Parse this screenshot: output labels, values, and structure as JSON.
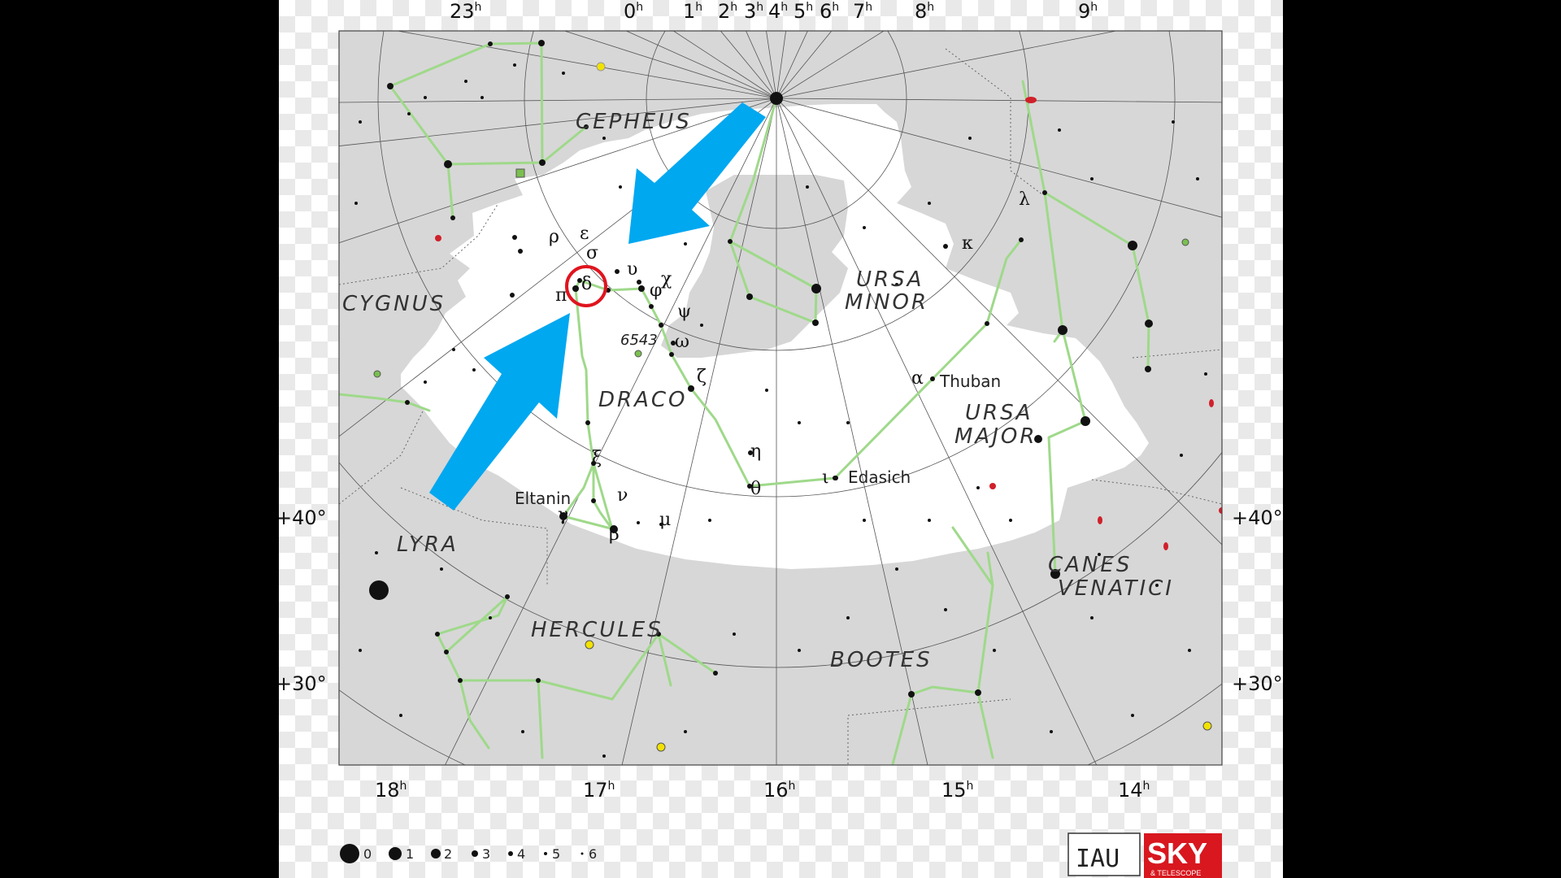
{
  "constellations": {
    "cepheus": "CEPHEUS",
    "cygnus": "CYGNUS",
    "ursa_minor_1": "URSA",
    "ursa_minor_2": "MINOR",
    "draco": "DRACO",
    "ursa_major_1": "URSA",
    "ursa_major_2": "MAJOR",
    "lyra": "LYRA",
    "hercules": "HERCULES",
    "bootes": "BOOTES",
    "canes_1": "CANES",
    "canes_2": "VENATICI"
  },
  "ra_top": [
    {
      "h": "23",
      "u": "h"
    },
    {
      "h": "0",
      "u": "h"
    },
    {
      "h": "1",
      "u": "h"
    },
    {
      "h": "2",
      "u": "h"
    },
    {
      "h": "3",
      "u": "h"
    },
    {
      "h": "4",
      "u": "h"
    },
    {
      "h": "5",
      "u": "h"
    },
    {
      "h": "6",
      "u": "h"
    },
    {
      "h": "7",
      "u": "h"
    },
    {
      "h": "8",
      "u": "h"
    },
    {
      "h": "9",
      "u": "h"
    }
  ],
  "ra_bottom": [
    {
      "h": "18",
      "u": "h"
    },
    {
      "h": "17",
      "u": "h"
    },
    {
      "h": "16",
      "u": "h"
    },
    {
      "h": "15",
      "u": "h"
    },
    {
      "h": "14",
      "u": "h"
    }
  ],
  "dec_labels": [
    "+40°",
    "+40°",
    "+30°",
    "+30°"
  ],
  "star_names": {
    "thuban": "Thuban",
    "edasich": "Edasich",
    "eltanin": "Eltanin"
  },
  "greek": {
    "rho": "ρ",
    "epsilon": "ε",
    "sigma": "σ",
    "upsilon": "υ",
    "delta": "δ",
    "pi": "π",
    "chi": "χ",
    "phi": "φ",
    "psi": "ψ",
    "omega": "ω",
    "zeta": "ζ",
    "eta": "η",
    "theta": "θ",
    "iota": "ι",
    "xi": "ξ",
    "nu": "ν",
    "gamma": "γ",
    "beta": "β",
    "mu": "μ",
    "alpha": "α",
    "kappa": "κ",
    "lambda": "λ"
  },
  "deep_sky": {
    "ngc6543": "6543"
  },
  "magnitude_scale": [
    "0",
    "1",
    "2",
    "3",
    "4",
    "5",
    "6"
  ],
  "logos": {
    "iau": "IAU",
    "sky": "SKY",
    "sky_sub": "& TELESCOPE"
  },
  "colors": {
    "constellation_line": "#9fd98a",
    "arrow": "#00a8f0",
    "highlight_circle": "#e0141e",
    "region_gray": "#d9d9d9",
    "background": "#000000"
  }
}
